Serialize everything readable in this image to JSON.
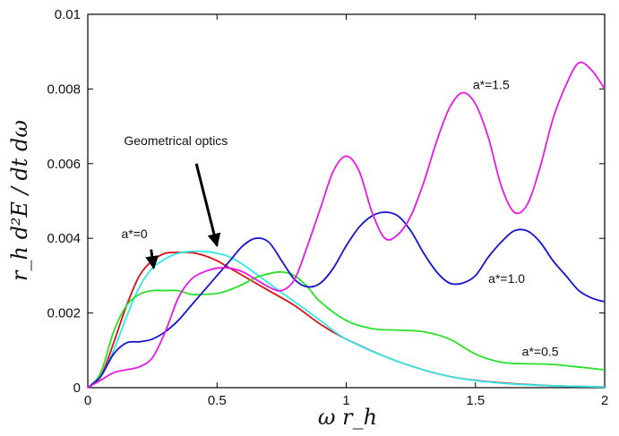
{
  "chart_data": {
    "type": "line",
    "title": "",
    "xlabel": "ω r_h",
    "ylabel": "r_h d²E / dt dω",
    "xlim": [
      0,
      2
    ],
    "ylim": [
      0,
      0.01
    ],
    "x_ticks": [
      "0",
      "0.5",
      "1",
      "1.5",
      "2"
    ],
    "y_ticks": [
      "0",
      "0.002",
      "0.004",
      "0.006",
      "0.008",
      "0.01"
    ],
    "grid": false,
    "series": [
      {
        "name": "a*=0",
        "color": "#e01010",
        "x": [
          0,
          0.05,
          0.1,
          0.15,
          0.2,
          0.25,
          0.3,
          0.35,
          0.4,
          0.45,
          0.5,
          0.55,
          0.6,
          0.7,
          0.8,
          0.9,
          1.0,
          1.2,
          1.4,
          1.6,
          1.8,
          2.0
        ],
        "y": [
          0,
          0.0003,
          0.0012,
          0.0022,
          0.003,
          0.0034,
          0.0036,
          0.00362,
          0.00362,
          0.00354,
          0.0034,
          0.0032,
          0.003,
          0.0026,
          0.0022,
          0.0017,
          0.0013,
          0.0007,
          0.0003,
          0.00013,
          5e-05,
          2e-05
        ]
      },
      {
        "name": "",
        "color": "#30e8e8",
        "x": [
          0,
          0.05,
          0.1,
          0.15,
          0.2,
          0.25,
          0.3,
          0.35,
          0.4,
          0.45,
          0.5,
          0.55,
          0.6,
          0.7,
          0.8,
          0.9,
          1.0,
          1.2,
          1.4,
          1.6,
          1.8,
          2.0
        ],
        "y": [
          0,
          0.0003,
          0.001,
          0.0019,
          0.0027,
          0.0032,
          0.00345,
          0.0036,
          0.00365,
          0.00365,
          0.0036,
          0.0035,
          0.0033,
          0.0028,
          0.0023,
          0.0018,
          0.0013,
          0.0007,
          0.0003,
          0.00012,
          5e-05,
          2e-05
        ]
      },
      {
        "name": "a*=0.5",
        "color": "#28e028",
        "x": [
          0,
          0.05,
          0.1,
          0.15,
          0.2,
          0.25,
          0.3,
          0.35,
          0.4,
          0.45,
          0.5,
          0.55,
          0.6,
          0.65,
          0.7,
          0.75,
          0.8,
          0.85,
          0.9,
          1.0,
          1.1,
          1.2,
          1.3,
          1.4,
          1.5,
          1.6,
          1.7,
          1.8,
          2.0
        ],
        "y": [
          0,
          0.0004,
          0.0015,
          0.0022,
          0.0025,
          0.0026,
          0.0026,
          0.0026,
          0.0025,
          0.0025,
          0.00252,
          0.00262,
          0.00277,
          0.00295,
          0.00305,
          0.0031,
          0.003,
          0.0027,
          0.0023,
          0.0018,
          0.00158,
          0.00154,
          0.0015,
          0.0013,
          0.0009,
          0.00068,
          0.00064,
          0.00062,
          0.00048
        ]
      },
      {
        "name": "a*=1.0",
        "color": "#1414d0",
        "x": [
          0,
          0.05,
          0.1,
          0.15,
          0.2,
          0.25,
          0.3,
          0.35,
          0.4,
          0.45,
          0.5,
          0.55,
          0.6,
          0.65,
          0.7,
          0.75,
          0.8,
          0.85,
          0.9,
          0.95,
          1.0,
          1.05,
          1.1,
          1.15,
          1.2,
          1.25,
          1.3,
          1.35,
          1.4,
          1.45,
          1.5,
          1.55,
          1.6,
          1.65,
          1.7,
          1.75,
          1.8,
          1.85,
          1.9,
          1.95,
          2.0
        ],
        "y": [
          0,
          0.0003,
          0.0009,
          0.0012,
          0.00123,
          0.0013,
          0.0015,
          0.0018,
          0.0022,
          0.0026,
          0.003,
          0.0034,
          0.0038,
          0.004,
          0.0039,
          0.0034,
          0.0029,
          0.0027,
          0.0028,
          0.0032,
          0.0038,
          0.0043,
          0.0046,
          0.0047,
          0.0046,
          0.0042,
          0.0036,
          0.0031,
          0.0028,
          0.0028,
          0.003,
          0.0035,
          0.0039,
          0.0042,
          0.0042,
          0.0039,
          0.0034,
          0.003,
          0.0026,
          0.0024,
          0.0023
        ]
      },
      {
        "name": "a*=1.5",
        "color": "#e818e8",
        "x": [
          0,
          0.05,
          0.1,
          0.15,
          0.2,
          0.25,
          0.3,
          0.35,
          0.4,
          0.45,
          0.5,
          0.55,
          0.6,
          0.65,
          0.7,
          0.75,
          0.8,
          0.85,
          0.9,
          0.95,
          1.0,
          1.05,
          1.1,
          1.15,
          1.2,
          1.25,
          1.3,
          1.35,
          1.4,
          1.45,
          1.5,
          1.55,
          1.6,
          1.65,
          1.7,
          1.75,
          1.8,
          1.85,
          1.9,
          1.95,
          2.0
        ],
        "y": [
          0,
          0.0002,
          0.0004,
          0.00048,
          0.00056,
          0.0008,
          0.0015,
          0.0024,
          0.0029,
          0.0031,
          0.0032,
          0.0032,
          0.0031,
          0.0029,
          0.0027,
          0.0026,
          0.0029,
          0.0038,
          0.0048,
          0.0058,
          0.0062,
          0.0058,
          0.0047,
          0.004,
          0.0041,
          0.0046,
          0.0055,
          0.0066,
          0.0075,
          0.0079,
          0.0076,
          0.0067,
          0.0054,
          0.0047,
          0.0049,
          0.0059,
          0.0072,
          0.0081,
          0.0087,
          0.0085,
          0.008
        ]
      }
    ],
    "annotations": [
      {
        "text": "a*=0",
        "x": 0.13,
        "y": 0.004
      },
      {
        "text": "a*=0.5",
        "x": 1.68,
        "y": 0.00085
      },
      {
        "text": "a*=1.0",
        "x": 1.55,
        "y": 0.0028
      },
      {
        "text": "a*=1.5",
        "x": 1.49,
        "y": 0.008
      },
      {
        "text": "Geometrical optics",
        "x": 0.14,
        "y": 0.0065
      }
    ],
    "arrows": [
      {
        "from": [
          0.245,
          0.0037
        ],
        "to": [
          0.255,
          0.0032
        ]
      },
      {
        "from": [
          0.42,
          0.006
        ],
        "to": [
          0.5,
          0.0038
        ]
      }
    ]
  }
}
